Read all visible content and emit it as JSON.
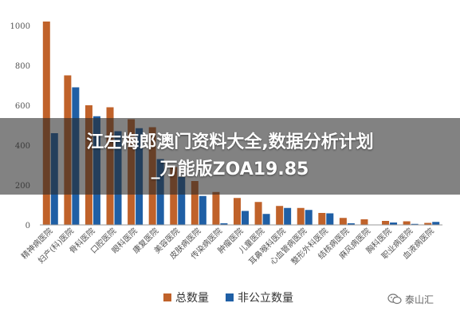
{
  "overlay": {
    "line1": "江左梅郎澳门资料大全,数据分析计划",
    "line2": "_万能版ZOA19.85"
  },
  "watermark": {
    "text": "泰山汇",
    "icon": "wechat-logo-icon"
  },
  "chart_data": {
    "type": "bar",
    "categories": [
      "精神病医院",
      "妇产(科)医院",
      "骨科医院",
      "口腔医院",
      "眼科医院",
      "康复医院",
      "美容医院",
      "皮肤病医院",
      "传染病医院",
      "肿瘤医院",
      "儿童医院",
      "耳鼻喉科医院",
      "心血管病医院",
      "整形外科医院",
      "结核病医院",
      "麻风病医院",
      "胸科医院",
      "职业病医院",
      "血液病医院"
    ],
    "series": [
      {
        "name": "总数量",
        "color": "#c0622a",
        "values": [
          1020,
          750,
          600,
          590,
          530,
          490,
          290,
          220,
          165,
          135,
          115,
          95,
          85,
          60,
          35,
          28,
          20,
          18,
          10
        ]
      },
      {
        "name": "非公立数量",
        "color": "#1f5fa5",
        "values": [
          460,
          690,
          545,
          470,
          485,
          330,
          240,
          145,
          8,
          70,
          55,
          85,
          75,
          58,
          8,
          2,
          12,
          5,
          15
        ]
      }
    ],
    "yticks": [
      0,
      200,
      400,
      600,
      800,
      1000
    ],
    "ylim": [
      0,
      1000
    ],
    "legend": "bottom",
    "grid": false
  }
}
